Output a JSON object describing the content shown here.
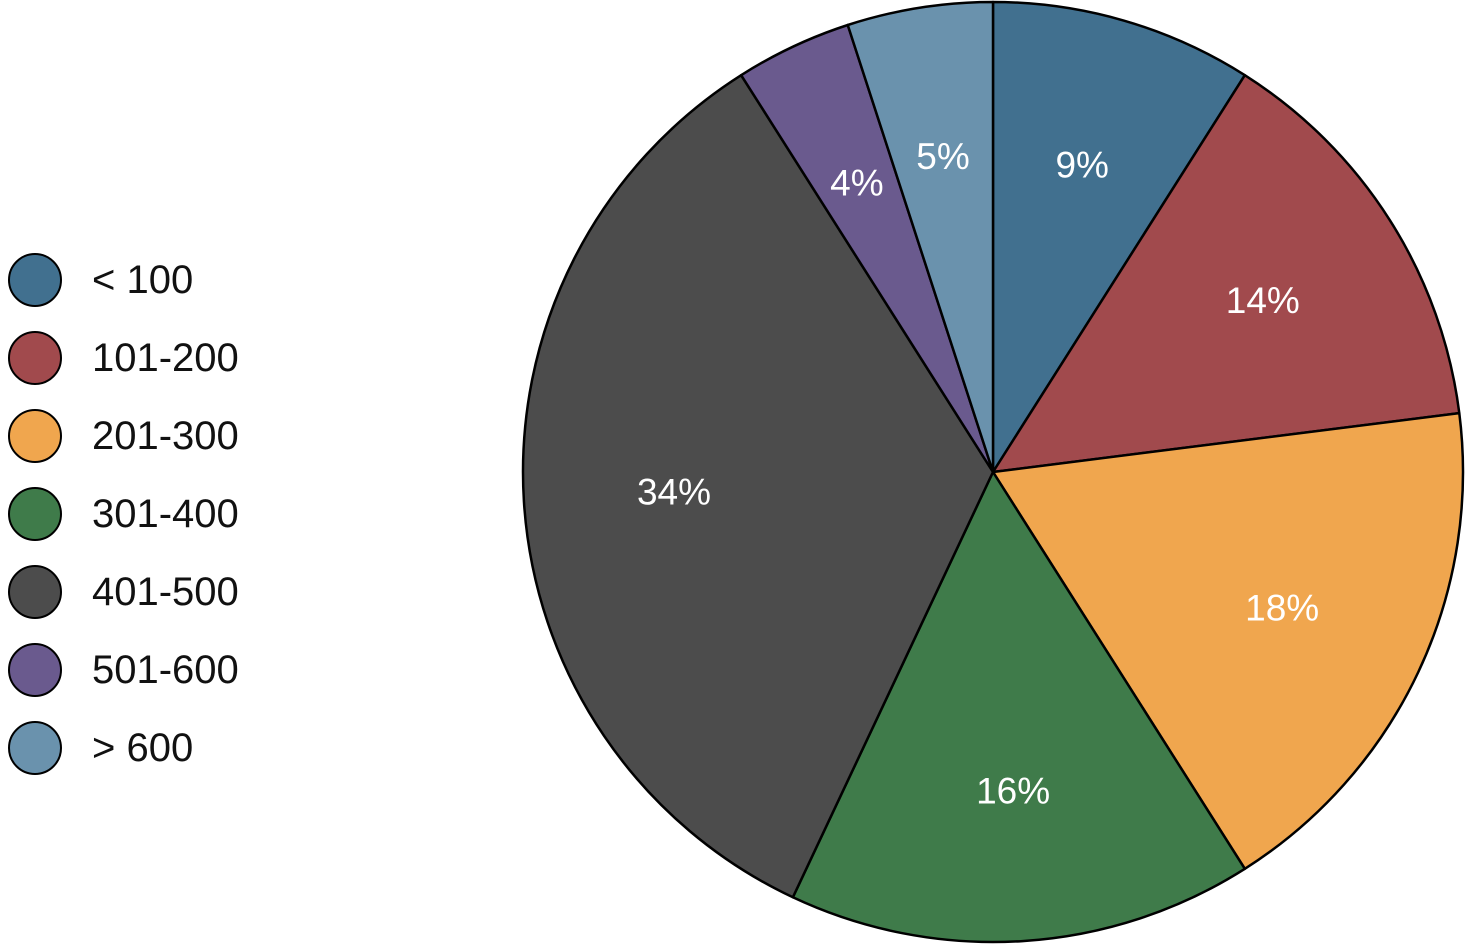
{
  "chart_data": {
    "type": "pie",
    "title": "",
    "legend_position": "left",
    "start_angle_deg": 0,
    "direction": "clockwise",
    "label_color": "#ffffff",
    "stroke_color": "#000000",
    "slices": [
      {
        "label": "< 100",
        "value": 9,
        "pct_label": "9%",
        "color": "#41708f"
      },
      {
        "label": "101-200",
        "value": 14,
        "pct_label": "14%",
        "color": "#a14a4d"
      },
      {
        "label": "201-300",
        "value": 18,
        "pct_label": "18%",
        "color": "#f0a64e"
      },
      {
        "label": "301-400",
        "value": 16,
        "pct_label": "16%",
        "color": "#3f7b4a"
      },
      {
        "label": "401-500",
        "value": 34,
        "pct_label": "34%",
        "color": "#4c4c4c"
      },
      {
        "label": "501-600",
        "value": 4,
        "pct_label": "4%",
        "color": "#6a5a8e"
      },
      {
        "label": "> 600",
        "value": 5,
        "pct_label": "5%",
        "color": "#6a92ad"
      }
    ]
  }
}
